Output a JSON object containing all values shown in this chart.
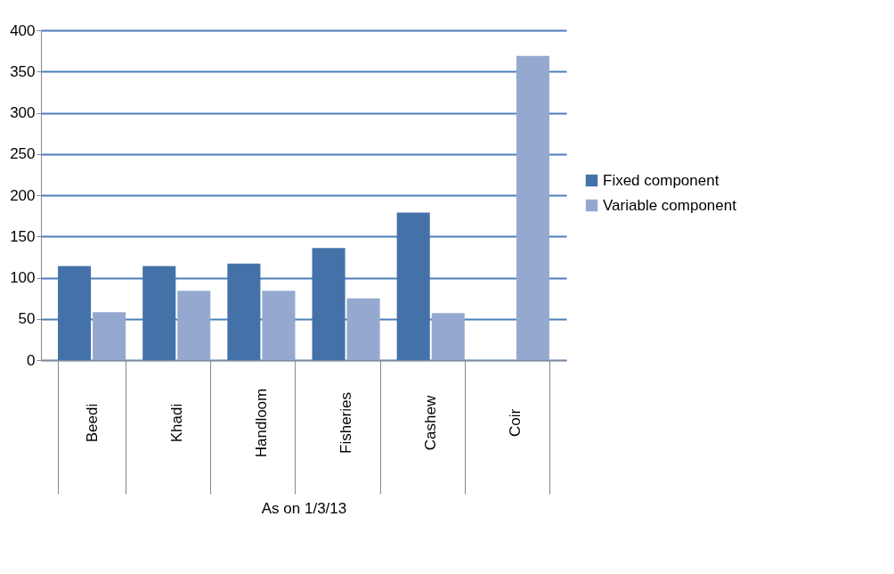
{
  "chart_data": {
    "type": "bar",
    "xlabel": "As on 1/3/13",
    "categories": [
      "Beedi",
      "Khadi",
      "Handloom",
      "Fisheries",
      "Cashew",
      "Coir"
    ],
    "series": [
      {
        "name": "Fixed component",
        "color": "#4472a8",
        "values": [
          114,
          114,
          117,
          136,
          179,
          0
        ]
      },
      {
        "name": "Variable component",
        "color": "#95a9d0",
        "values": [
          58,
          84,
          84,
          75,
          57,
          369
        ]
      }
    ],
    "ylim": [
      0,
      400
    ],
    "yticks": [
      0,
      50,
      100,
      150,
      200,
      250,
      300,
      350,
      400
    ],
    "grid": "y",
    "legend": "right"
  }
}
